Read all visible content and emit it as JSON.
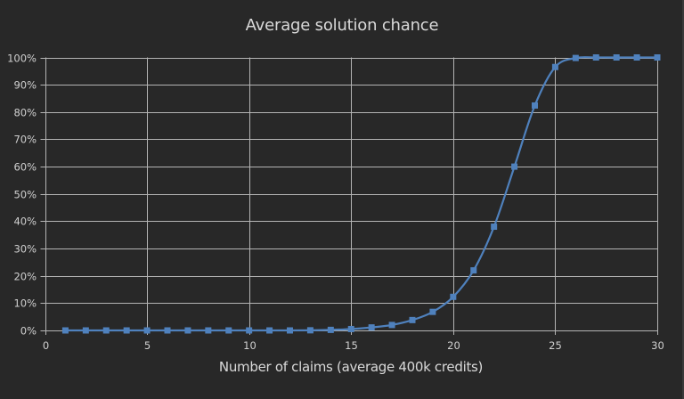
{
  "chart_data": {
    "type": "line",
    "title": "Average solution chance",
    "xlabel": "Number of claims (average 400k credits)",
    "ylabel": "",
    "xlim": [
      0,
      30
    ],
    "ylim": [
      0,
      100
    ],
    "x_ticks": [
      0,
      5,
      10,
      15,
      20,
      25,
      30
    ],
    "y_ticks": [
      "0%",
      "10%",
      "20%",
      "30%",
      "40%",
      "50%",
      "60%",
      "70%",
      "80%",
      "90%",
      "100%"
    ],
    "grid": true,
    "legend": "none",
    "series": [
      {
        "name": "Average solution chance",
        "color": "#4f81bd",
        "marker": "square",
        "smooth": true,
        "x": [
          1,
          2,
          3,
          4,
          5,
          6,
          7,
          8,
          9,
          10,
          11,
          12,
          13,
          14,
          15,
          16,
          17,
          18,
          19,
          20,
          21,
          22,
          23,
          24,
          25,
          26,
          27,
          28,
          29,
          30
        ],
        "values": [
          0,
          0,
          0,
          0,
          0,
          0,
          0,
          0,
          0,
          0,
          0,
          0,
          0.05,
          0.2,
          0.5,
          1.1,
          2.0,
          3.8,
          6.8,
          12.3,
          22.0,
          38.0,
          60.0,
          82.4,
          96.5,
          99.8,
          100,
          100,
          100,
          100
        ]
      }
    ]
  },
  "colors": {
    "background": "#282828",
    "grid": "#b4b4b4",
    "text": "#d9d9d9",
    "series": "#4f81bd"
  }
}
